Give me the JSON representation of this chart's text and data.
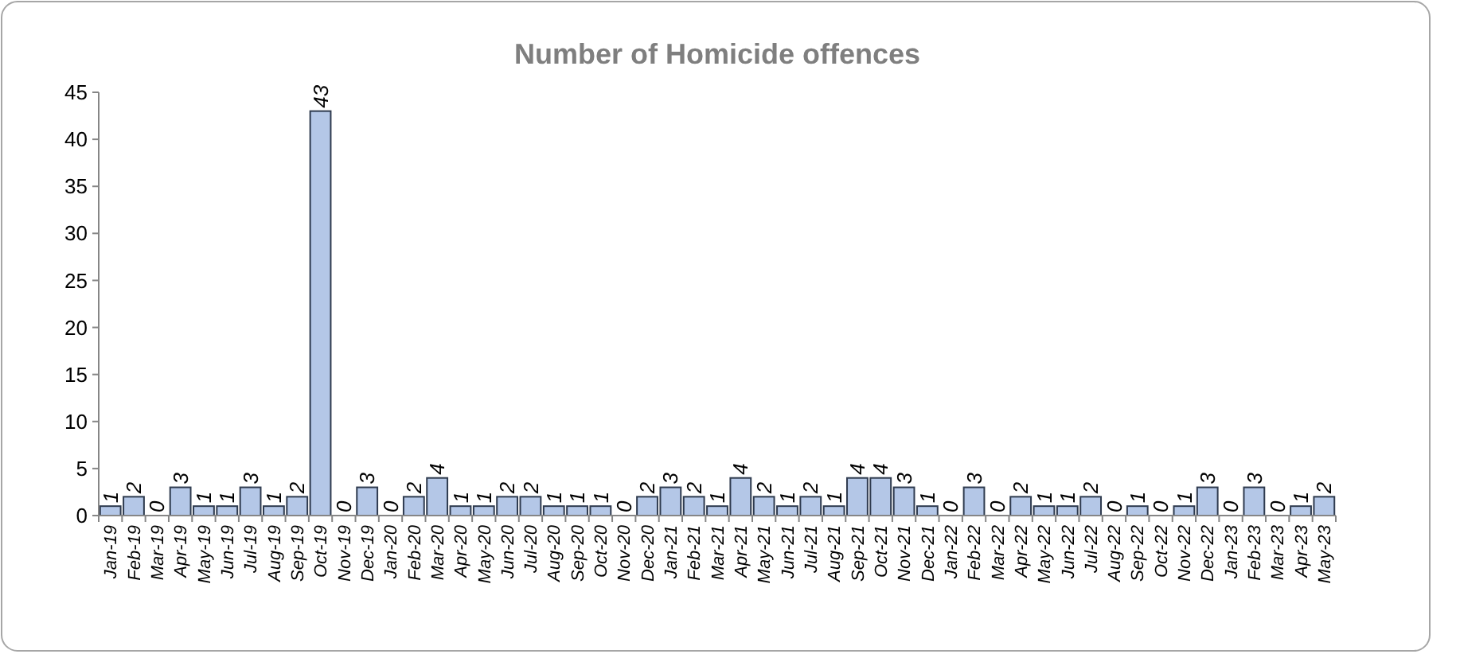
{
  "chart_data": {
    "type": "bar",
    "title": "Number of Homicide offences",
    "categories": [
      "Jan-19",
      "Feb-19",
      "Mar-19",
      "Apr-19",
      "May-19",
      "Jun-19",
      "Jul-19",
      "Aug-19",
      "Sep-19",
      "Oct-19",
      "Nov-19",
      "Dec-19",
      "Jan-20",
      "Feb-20",
      "Mar-20",
      "Apr-20",
      "May-20",
      "Jun-20",
      "Jul-20",
      "Aug-20",
      "Sep-20",
      "Oct-20",
      "Nov-20",
      "Dec-20",
      "Jan-21",
      "Feb-21",
      "Mar-21",
      "Apr-21",
      "May-21",
      "Jun-21",
      "Jul-21",
      "Aug-21",
      "Sep-21",
      "Oct-21",
      "Nov-21",
      "Dec-21",
      "Jan-22",
      "Feb-22",
      "Mar-22",
      "Apr-22",
      "May-22",
      "Jun-22",
      "Jul-22",
      "Aug-22",
      "Sep-22",
      "Oct-22",
      "Nov-22",
      "Dec-22",
      "Jan-23",
      "Feb-23",
      "Mar-23",
      "Apr-23",
      "May-23"
    ],
    "values": [
      1,
      2,
      0,
      3,
      1,
      1,
      3,
      1,
      2,
      43,
      0,
      3,
      0,
      2,
      4,
      1,
      1,
      2,
      2,
      1,
      1,
      1,
      0,
      2,
      3,
      2,
      1,
      4,
      2,
      1,
      2,
      1,
      4,
      4,
      3,
      1,
      0,
      3,
      0,
      2,
      1,
      1,
      2,
      0,
      1,
      0,
      1,
      3,
      0,
      3,
      0,
      1,
      2
    ],
    "color": "#b4c7e7",
    "ylim": [
      0,
      45
    ],
    "yticks": [
      0,
      5,
      10,
      15,
      20,
      25,
      30,
      35,
      40,
      45
    ],
    "grid": false,
    "data_labels": true
  }
}
